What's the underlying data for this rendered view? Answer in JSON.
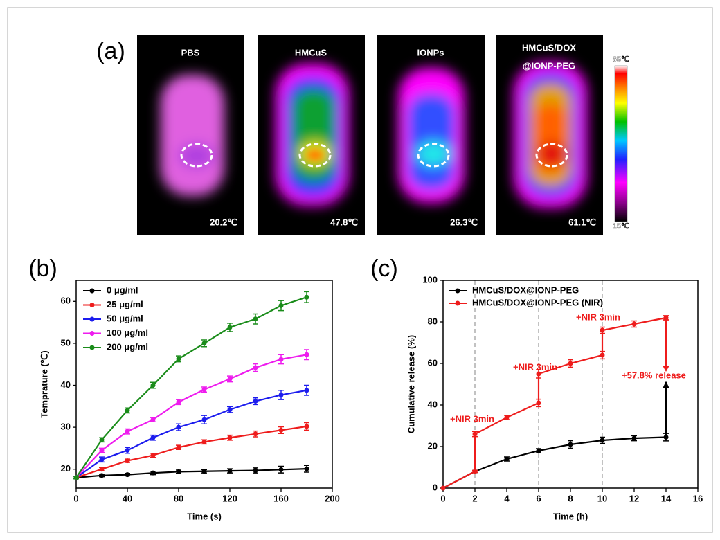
{
  "panel_a": {
    "label": "(a)",
    "images": [
      {
        "title": [
          "PBS"
        ],
        "temp": "20.2℃"
      },
      {
        "title": [
          "HMCuS"
        ],
        "temp": "47.8℃"
      },
      {
        "title": [
          "IONPs"
        ],
        "temp": "26.3℃"
      },
      {
        "title": [
          "HMCuS/DOX",
          "@IONP-PEG"
        ],
        "temp": "61.1℃"
      }
    ],
    "colorbar": {
      "max": "65℃",
      "min": "15℃"
    }
  },
  "chart_data": [
    {
      "type": "line",
      "panel_label": "(b)",
      "xlabel": "Time (s)",
      "ylabel": "Temprature (℃)",
      "xlim": [
        0,
        200
      ],
      "xticks": [
        0,
        40,
        80,
        120,
        160,
        200
      ],
      "ylim": [
        15.5,
        65
      ],
      "yticks": [
        20,
        30,
        40,
        50,
        60
      ],
      "legend": "upper left",
      "series": [
        {
          "name": "0 μg/ml",
          "color": "#000000",
          "x": [
            0,
            20,
            40,
            60,
            80,
            100,
            120,
            140,
            160,
            180
          ],
          "values": [
            18,
            18.5,
            18.7,
            19.1,
            19.4,
            19.5,
            19.6,
            19.7,
            19.9,
            20.1
          ],
          "errors": [
            0.3,
            0.3,
            0.3,
            0.4,
            0.4,
            0.4,
            0.5,
            0.6,
            0.8,
            0.8
          ]
        },
        {
          "name": "25 μg/ml",
          "color": "#ee1c1c",
          "x": [
            0,
            20,
            40,
            60,
            80,
            100,
            120,
            140,
            160,
            180
          ],
          "values": [
            18,
            20,
            22,
            23.3,
            25.2,
            26.5,
            27.5,
            28.4,
            29.3,
            30.2
          ],
          "errors": [
            0.3,
            0.4,
            0.4,
            0.5,
            0.5,
            0.5,
            0.6,
            0.7,
            0.8,
            0.9
          ]
        },
        {
          "name": "50 μg/ml",
          "color": "#1c1cee",
          "x": [
            0,
            20,
            40,
            60,
            80,
            100,
            120,
            140,
            160,
            180
          ],
          "values": [
            18,
            22.3,
            24.5,
            27.5,
            30,
            31.8,
            34.2,
            36.2,
            37.7,
            38.8
          ],
          "errors": [
            0.3,
            0.6,
            0.7,
            0.6,
            0.8,
            1,
            0.7,
            0.8,
            1.1,
            1.2
          ]
        },
        {
          "name": "100 μg/ml",
          "color": "#ee1cee",
          "x": [
            0,
            20,
            40,
            60,
            80,
            100,
            120,
            140,
            160,
            180
          ],
          "values": [
            18,
            24.5,
            29,
            31.8,
            36,
            39,
            41.5,
            44.2,
            46.2,
            47.3
          ],
          "errors": [
            0.3,
            0.5,
            0.6,
            0.5,
            0.6,
            0.6,
            0.7,
            0.9,
            1.1,
            1.2
          ]
        },
        {
          "name": "200 μg/ml",
          "color": "#1a8c1a",
          "x": [
            0,
            20,
            40,
            60,
            80,
            100,
            120,
            140,
            160,
            180
          ],
          "values": [
            18,
            27,
            34,
            40,
            46.3,
            50,
            53.8,
            55.8,
            59,
            61
          ],
          "errors": [
            0.3,
            0.5,
            0.6,
            0.7,
            0.7,
            0.8,
            1,
            1.2,
            1.2,
            1.3
          ]
        }
      ]
    },
    {
      "type": "line",
      "panel_label": "(c)",
      "xlabel": "Time (h)",
      "ylabel": "Cumulative release (%)",
      "xlim": [
        0,
        16
      ],
      "xticks": [
        0,
        2,
        4,
        6,
        8,
        10,
        12,
        14,
        16
      ],
      "ylim": [
        0,
        100
      ],
      "yticks": [
        0,
        20,
        40,
        60,
        80,
        100
      ],
      "legend": "upper left",
      "vlines": [
        2,
        6,
        10
      ],
      "annotations": [
        "+NIR 3min",
        "+NIR 3min",
        "+NIR 3min",
        "+57.8% release"
      ],
      "series": [
        {
          "name": "HMCuS/DOX@IONP-PEG",
          "color": "#000000",
          "x": [
            0,
            2,
            4,
            6,
            8,
            10,
            12,
            14
          ],
          "values": [
            0,
            8,
            14,
            18,
            21,
            23,
            24,
            24.5
          ],
          "errors": [
            0,
            0.5,
            1,
            1,
            1.8,
            1.5,
            1.2,
            1.8
          ]
        },
        {
          "name": "HMCuS/DOX@IONP-PEG (NIR)",
          "color": "#ee1c1c",
          "x": [
            0,
            2,
            2,
            4,
            6,
            6,
            8,
            10,
            10,
            12,
            14,
            14
          ],
          "values": [
            0,
            8,
            26,
            34,
            41,
            55,
            60,
            64,
            76,
            79,
            82,
            82
          ],
          "errors": [
            0,
            0.5,
            1.2,
            1,
            1.8,
            2,
            1.8,
            1.8,
            1.5,
            1.5,
            1,
            1
          ]
        }
      ]
    }
  ]
}
